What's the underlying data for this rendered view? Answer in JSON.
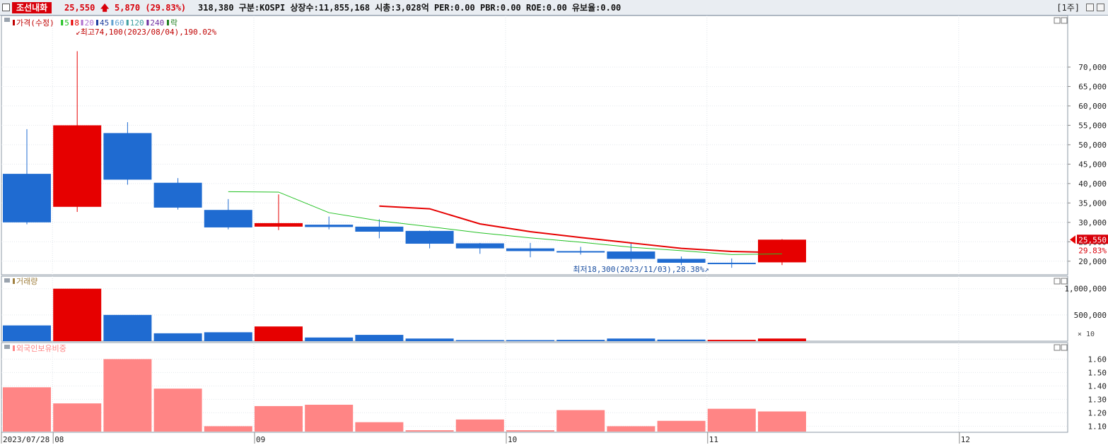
{
  "header": {
    "stock_name": "조선내화",
    "price": "25,550",
    "change_arrow": "🡅",
    "change": "5,870 (29.83%)",
    "info": "318,380  구분:KOSPI 상장수:11,855,168 시총:3,028억 PER:0.00 PBR:0.00 ROE:0.00 유보율:0.00",
    "period": "[1주]"
  },
  "colors": {
    "up": "#e60000",
    "down": "#1f6bd1",
    "ma5": "#22c122",
    "ma8": "#e60000",
    "foreign": "#ff8585"
  },
  "chart_data": [
    {
      "type": "candlestick",
      "legend": [
        {
          "label": "가격(수정)",
          "color": "#c00000"
        },
        {
          "label": "5",
          "color": "#22c122"
        },
        {
          "label": "8",
          "color": "#e60000"
        },
        {
          "label": "20",
          "color": "#b070d0"
        },
        {
          "label": "45",
          "color": "#2040a0"
        },
        {
          "label": "60",
          "color": "#60a0d0"
        },
        {
          "label": "120",
          "color": "#40a0a0"
        },
        {
          "label": "240",
          "color": "#7030a0"
        },
        {
          "label": "락",
          "color": "#208020"
        }
      ],
      "ylim": [
        16500,
        76000
      ],
      "yticks": [
        20000,
        25000,
        30000,
        35000,
        40000,
        45000,
        50000,
        55000,
        60000,
        65000,
        70000
      ],
      "ytick_labels": [
        "20,000",
        "25,000",
        "30,000",
        "35,000",
        "40,000",
        "45,000",
        "50,000",
        "55,000",
        "60,000",
        "65,000",
        "70,000"
      ],
      "candles": [
        {
          "o": 42500,
          "h": 54000,
          "l": 29500,
          "c": 30000
        },
        {
          "o": 34000,
          "h": 74100,
          "l": 32700,
          "c": 55000
        },
        {
          "o": 53000,
          "h": 55800,
          "l": 39700,
          "c": 41000
        },
        {
          "o": 40200,
          "h": 41400,
          "l": 33300,
          "c": 33800
        },
        {
          "o": 33200,
          "h": 36000,
          "l": 28200,
          "c": 28700
        },
        {
          "o": 28900,
          "h": 37200,
          "l": 28000,
          "c": 29800
        },
        {
          "o": 29400,
          "h": 31500,
          "l": 28200,
          "c": 28800
        },
        {
          "o": 28900,
          "h": 30800,
          "l": 25900,
          "c": 27600
        },
        {
          "o": 27800,
          "h": 27900,
          "l": 23300,
          "c": 24500
        },
        {
          "o": 24600,
          "h": 24700,
          "l": 21900,
          "c": 23300
        },
        {
          "o": 23300,
          "h": 24700,
          "l": 21000,
          "c": 22600
        },
        {
          "o": 22600,
          "h": 23700,
          "l": 21700,
          "c": 22500
        },
        {
          "o": 22500,
          "h": 24500,
          "l": 19800,
          "c": 20600
        },
        {
          "o": 20600,
          "h": 21200,
          "l": 19000,
          "c": 19600
        },
        {
          "o": 19600,
          "h": 20700,
          "l": 18300,
          "c": 19400
        },
        {
          "o": 19700,
          "h": 25700,
          "l": 19000,
          "c": 25550
        }
      ],
      "ma5": [
        null,
        null,
        null,
        null,
        37900,
        37800,
        32500,
        30400,
        28900,
        27300,
        26000,
        24900,
        23600,
        22700,
        21700,
        21900
      ],
      "ma8": [
        null,
        null,
        null,
        null,
        null,
        null,
        null,
        34200,
        33500,
        29600,
        27600,
        26100,
        24700,
        23300,
        22500,
        22200
      ],
      "annotations": {
        "high": "최고74,100(2023/08/04),190.02%",
        "low": "최저18,300(2023/11/03),28.38%"
      },
      "last_price_label": "25,550",
      "last_change_label": "29.83%"
    },
    {
      "type": "bar",
      "title": "거래량",
      "ylim": [
        0,
        1050000
      ],
      "yticks": [
        500000,
        1000000
      ],
      "ytick_labels": [
        "500,000",
        "1,000,000"
      ],
      "unit": "× 10",
      "values": [
        300000,
        1000000,
        500000,
        150000,
        170000,
        280000,
        70000,
        120000,
        50000,
        20000,
        20000,
        25000,
        50000,
        30000,
        25000,
        50000
      ],
      "up": [
        false,
        true,
        false,
        false,
        false,
        true,
        false,
        false,
        false,
        false,
        false,
        false,
        false,
        false,
        true,
        true
      ]
    },
    {
      "type": "bar",
      "title": "외국인보유비중",
      "ylim": [
        1.06,
        1.66
      ],
      "yticks": [
        1.1,
        1.2,
        1.3,
        1.4,
        1.5,
        1.6
      ],
      "ytick_labels": [
        "1.10",
        "1.20",
        "1.30",
        "1.40",
        "1.50",
        "1.60"
      ],
      "values": [
        1.39,
        1.27,
        1.6,
        1.38,
        1.1,
        1.25,
        1.26,
        1.13,
        1.07,
        1.15,
        1.07,
        1.22,
        1.1,
        1.14,
        1.23,
        1.21
      ]
    }
  ],
  "xaxis": {
    "labels": [
      {
        "text": "2023/07/28",
        "pos": 0
      },
      {
        "text": "08",
        "pos": 1
      },
      {
        "text": "09",
        "pos": 5
      },
      {
        "text": "10",
        "pos": 10
      },
      {
        "text": "11",
        "pos": 14
      },
      {
        "text": "12",
        "pos": 19
      }
    ]
  }
}
